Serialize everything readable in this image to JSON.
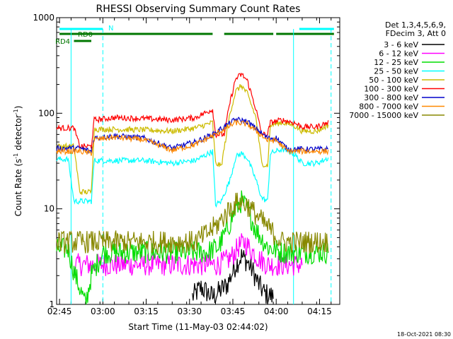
{
  "chart_data": {
    "type": "line",
    "title": "RHESSI Observing Summary Count Rates",
    "xlabel": "Start Time (11-May-03 02:44:02)",
    "ylabel_parts": [
      "Count Rate (s",
      "-1",
      " detector",
      "-1",
      ")"
    ],
    "yscale": "log",
    "ylim": [
      1,
      1000
    ],
    "xlim_minutes": [
      0,
      98
    ],
    "x_ticks": [
      {
        "m": 1,
        "label": "02:45"
      },
      {
        "m": 16,
        "label": "03:00"
      },
      {
        "m": 31,
        "label": "03:15"
      },
      {
        "m": 46,
        "label": "03:30"
      },
      {
        "m": 61,
        "label": "03:45"
      },
      {
        "m": 76,
        "label": "04:00"
      },
      {
        "m": 91,
        "label": "04:15"
      }
    ],
    "y_ticks": [
      {
        "v": 1,
        "label": "1"
      },
      {
        "v": 10,
        "label": "10"
      },
      {
        "v": 100,
        "label": "100"
      },
      {
        "v": 1000,
        "label": "1000"
      }
    ],
    "legend_header": [
      "Det 1,3,4,5,6,9,",
      "FDecim 3, Att 0"
    ],
    "series": [
      {
        "name": "3 - 6 keV",
        "color": "#000000",
        "points": [
          [
            47,
            1.2
          ],
          [
            50,
            1.5
          ],
          [
            54,
            1.2
          ],
          [
            59,
            1.6
          ],
          [
            62,
            2.6
          ],
          [
            64,
            3.2
          ],
          [
            66,
            2.8
          ],
          [
            68,
            2.2
          ],
          [
            70,
            1.6
          ],
          [
            72,
            1.3
          ],
          [
            75,
            1.2
          ]
        ]
      },
      {
        "name": "6 - 12 keV",
        "color": "#ff00ff",
        "points": [
          [
            6,
            2.6
          ],
          [
            15,
            2.6
          ],
          [
            25,
            2.6
          ],
          [
            35,
            2.6
          ],
          [
            44,
            2.6
          ],
          [
            52,
            2.6
          ],
          [
            56,
            2.6
          ],
          [
            60,
            3.0
          ],
          [
            63,
            4.0
          ],
          [
            65,
            4.5
          ],
          [
            67,
            3.8
          ],
          [
            70,
            3.0
          ],
          [
            73,
            2.6
          ],
          [
            80,
            2.6
          ],
          [
            85,
            2.6
          ]
        ]
      },
      {
        "name": "12 - 25 keV",
        "color": "#00dd00",
        "points": [
          [
            0,
            3.8
          ],
          [
            4,
            3.8
          ],
          [
            6,
            2.2
          ],
          [
            10,
            1.0
          ],
          [
            12,
            2.0
          ],
          [
            16,
            3.5
          ],
          [
            25,
            3.5
          ],
          [
            35,
            3.5
          ],
          [
            45,
            3.5
          ],
          [
            52,
            3.5
          ],
          [
            56,
            4.0
          ],
          [
            59,
            6.0
          ],
          [
            62,
            10.0
          ],
          [
            64,
            12.0
          ],
          [
            66,
            10.0
          ],
          [
            69,
            6.0
          ],
          [
            73,
            4.0
          ],
          [
            78,
            3.5
          ],
          [
            85,
            3.5
          ],
          [
            94,
            3.5
          ]
        ]
      },
      {
        "name": "25 - 50 keV",
        "color": "#00ffff",
        "points": [
          [
            0,
            33
          ],
          [
            4,
            33
          ],
          [
            6,
            12
          ],
          [
            12,
            12
          ],
          [
            13,
            32
          ],
          [
            20,
            32
          ],
          [
            30,
            32
          ],
          [
            40,
            30
          ],
          [
            48,
            32
          ],
          [
            54,
            40
          ],
          [
            55,
            11
          ],
          [
            57,
            12
          ],
          [
            60,
            20
          ],
          [
            62,
            35
          ],
          [
            64,
            38
          ],
          [
            66,
            34
          ],
          [
            69,
            20
          ],
          [
            71,
            13
          ],
          [
            73,
            12
          ],
          [
            74,
            38
          ],
          [
            78,
            42
          ],
          [
            82,
            38
          ],
          [
            85,
            30
          ],
          [
            90,
            30
          ],
          [
            94,
            34
          ]
        ]
      },
      {
        "name": "50 - 100 keV",
        "color": "#ccbb00",
        "points": [
          [
            0,
            45
          ],
          [
            6,
            45
          ],
          [
            8,
            15
          ],
          [
            12,
            15
          ],
          [
            13,
            68
          ],
          [
            20,
            68
          ],
          [
            30,
            67
          ],
          [
            40,
            65
          ],
          [
            48,
            70
          ],
          [
            54,
            80
          ],
          [
            55,
            30
          ],
          [
            57,
            28
          ],
          [
            60,
            100
          ],
          [
            62,
            170
          ],
          [
            64,
            195
          ],
          [
            66,
            160
          ],
          [
            69,
            90
          ],
          [
            71,
            30
          ],
          [
            73,
            28
          ],
          [
            74,
            75
          ],
          [
            78,
            80
          ],
          [
            82,
            75
          ],
          [
            85,
            65
          ],
          [
            90,
            65
          ],
          [
            94,
            75
          ]
        ]
      },
      {
        "name": "100 - 300 keV",
        "color": "#ff0000",
        "points": [
          [
            0,
            70
          ],
          [
            6,
            70
          ],
          [
            8,
            45
          ],
          [
            12,
            45
          ],
          [
            13,
            85
          ],
          [
            20,
            90
          ],
          [
            30,
            88
          ],
          [
            40,
            85
          ],
          [
            48,
            90
          ],
          [
            54,
            110
          ],
          [
            55,
            60
          ],
          [
            58,
            60
          ],
          [
            60,
            130
          ],
          [
            62,
            230
          ],
          [
            64,
            255
          ],
          [
            66,
            220
          ],
          [
            69,
            110
          ],
          [
            71,
            60
          ],
          [
            73,
            60
          ],
          [
            74,
            80
          ],
          [
            78,
            85
          ],
          [
            82,
            80
          ],
          [
            85,
            72
          ],
          [
            90,
            72
          ],
          [
            94,
            80
          ]
        ]
      },
      {
        "name": "300 - 800 keV",
        "color": "#0000cc",
        "points": [
          [
            0,
            43
          ],
          [
            8,
            43
          ],
          [
            12,
            40
          ],
          [
            13,
            55
          ],
          [
            20,
            58
          ],
          [
            30,
            55
          ],
          [
            40,
            43
          ],
          [
            48,
            50
          ],
          [
            54,
            60
          ],
          [
            58,
            72
          ],
          [
            62,
            86
          ],
          [
            66,
            82
          ],
          [
            70,
            65
          ],
          [
            73,
            55
          ],
          [
            76,
            55
          ],
          [
            80,
            42
          ],
          [
            85,
            42
          ],
          [
            94,
            42
          ]
        ]
      },
      {
        "name": "800 - 7000 keV",
        "color": "#ff8800",
        "points": [
          [
            0,
            40
          ],
          [
            8,
            40
          ],
          [
            12,
            38
          ],
          [
            13,
            53
          ],
          [
            20,
            56
          ],
          [
            30,
            53
          ],
          [
            40,
            41
          ],
          [
            48,
            47
          ],
          [
            54,
            58
          ],
          [
            58,
            68
          ],
          [
            62,
            80
          ],
          [
            66,
            77
          ],
          [
            70,
            62
          ],
          [
            73,
            52
          ],
          [
            76,
            52
          ],
          [
            80,
            40
          ],
          [
            85,
            40
          ],
          [
            94,
            40
          ]
        ]
      },
      {
        "name": "7000 - 15000 keV",
        "color": "#888800",
        "points": [
          [
            0,
            4.5
          ],
          [
            8,
            4.5
          ],
          [
            12,
            4.5
          ],
          [
            20,
            4.5
          ],
          [
            30,
            4.5
          ],
          [
            40,
            4.5
          ],
          [
            48,
            4.5
          ],
          [
            52,
            5.5
          ],
          [
            56,
            7.0
          ],
          [
            60,
            10.0
          ],
          [
            63,
            12.0
          ],
          [
            66,
            11.0
          ],
          [
            70,
            8.0
          ],
          [
            74,
            6.0
          ],
          [
            78,
            4.5
          ],
          [
            85,
            4.5
          ],
          [
            94,
            4.5
          ]
        ]
      }
    ],
    "annotations": {
      "saa_label": "N",
      "rd0_label": "RD0",
      "rd4_label": "RD4",
      "saa_bars": [
        [
          1,
          16
        ],
        [
          84,
          96
        ]
      ],
      "rd0_bars": [
        [
          1,
          54
        ],
        [
          58,
          75
        ],
        [
          76,
          96
        ]
      ],
      "rd4_bars": [
        [
          6,
          12
        ]
      ],
      "solid_vlines": [
        5,
        82
      ],
      "dashed_vlines": [
        16,
        95
      ]
    },
    "colors": {
      "saa": "#00ffff",
      "rd": "#007700"
    }
  },
  "footer": {
    "timestamp": "18-Oct-2021 08:30"
  }
}
